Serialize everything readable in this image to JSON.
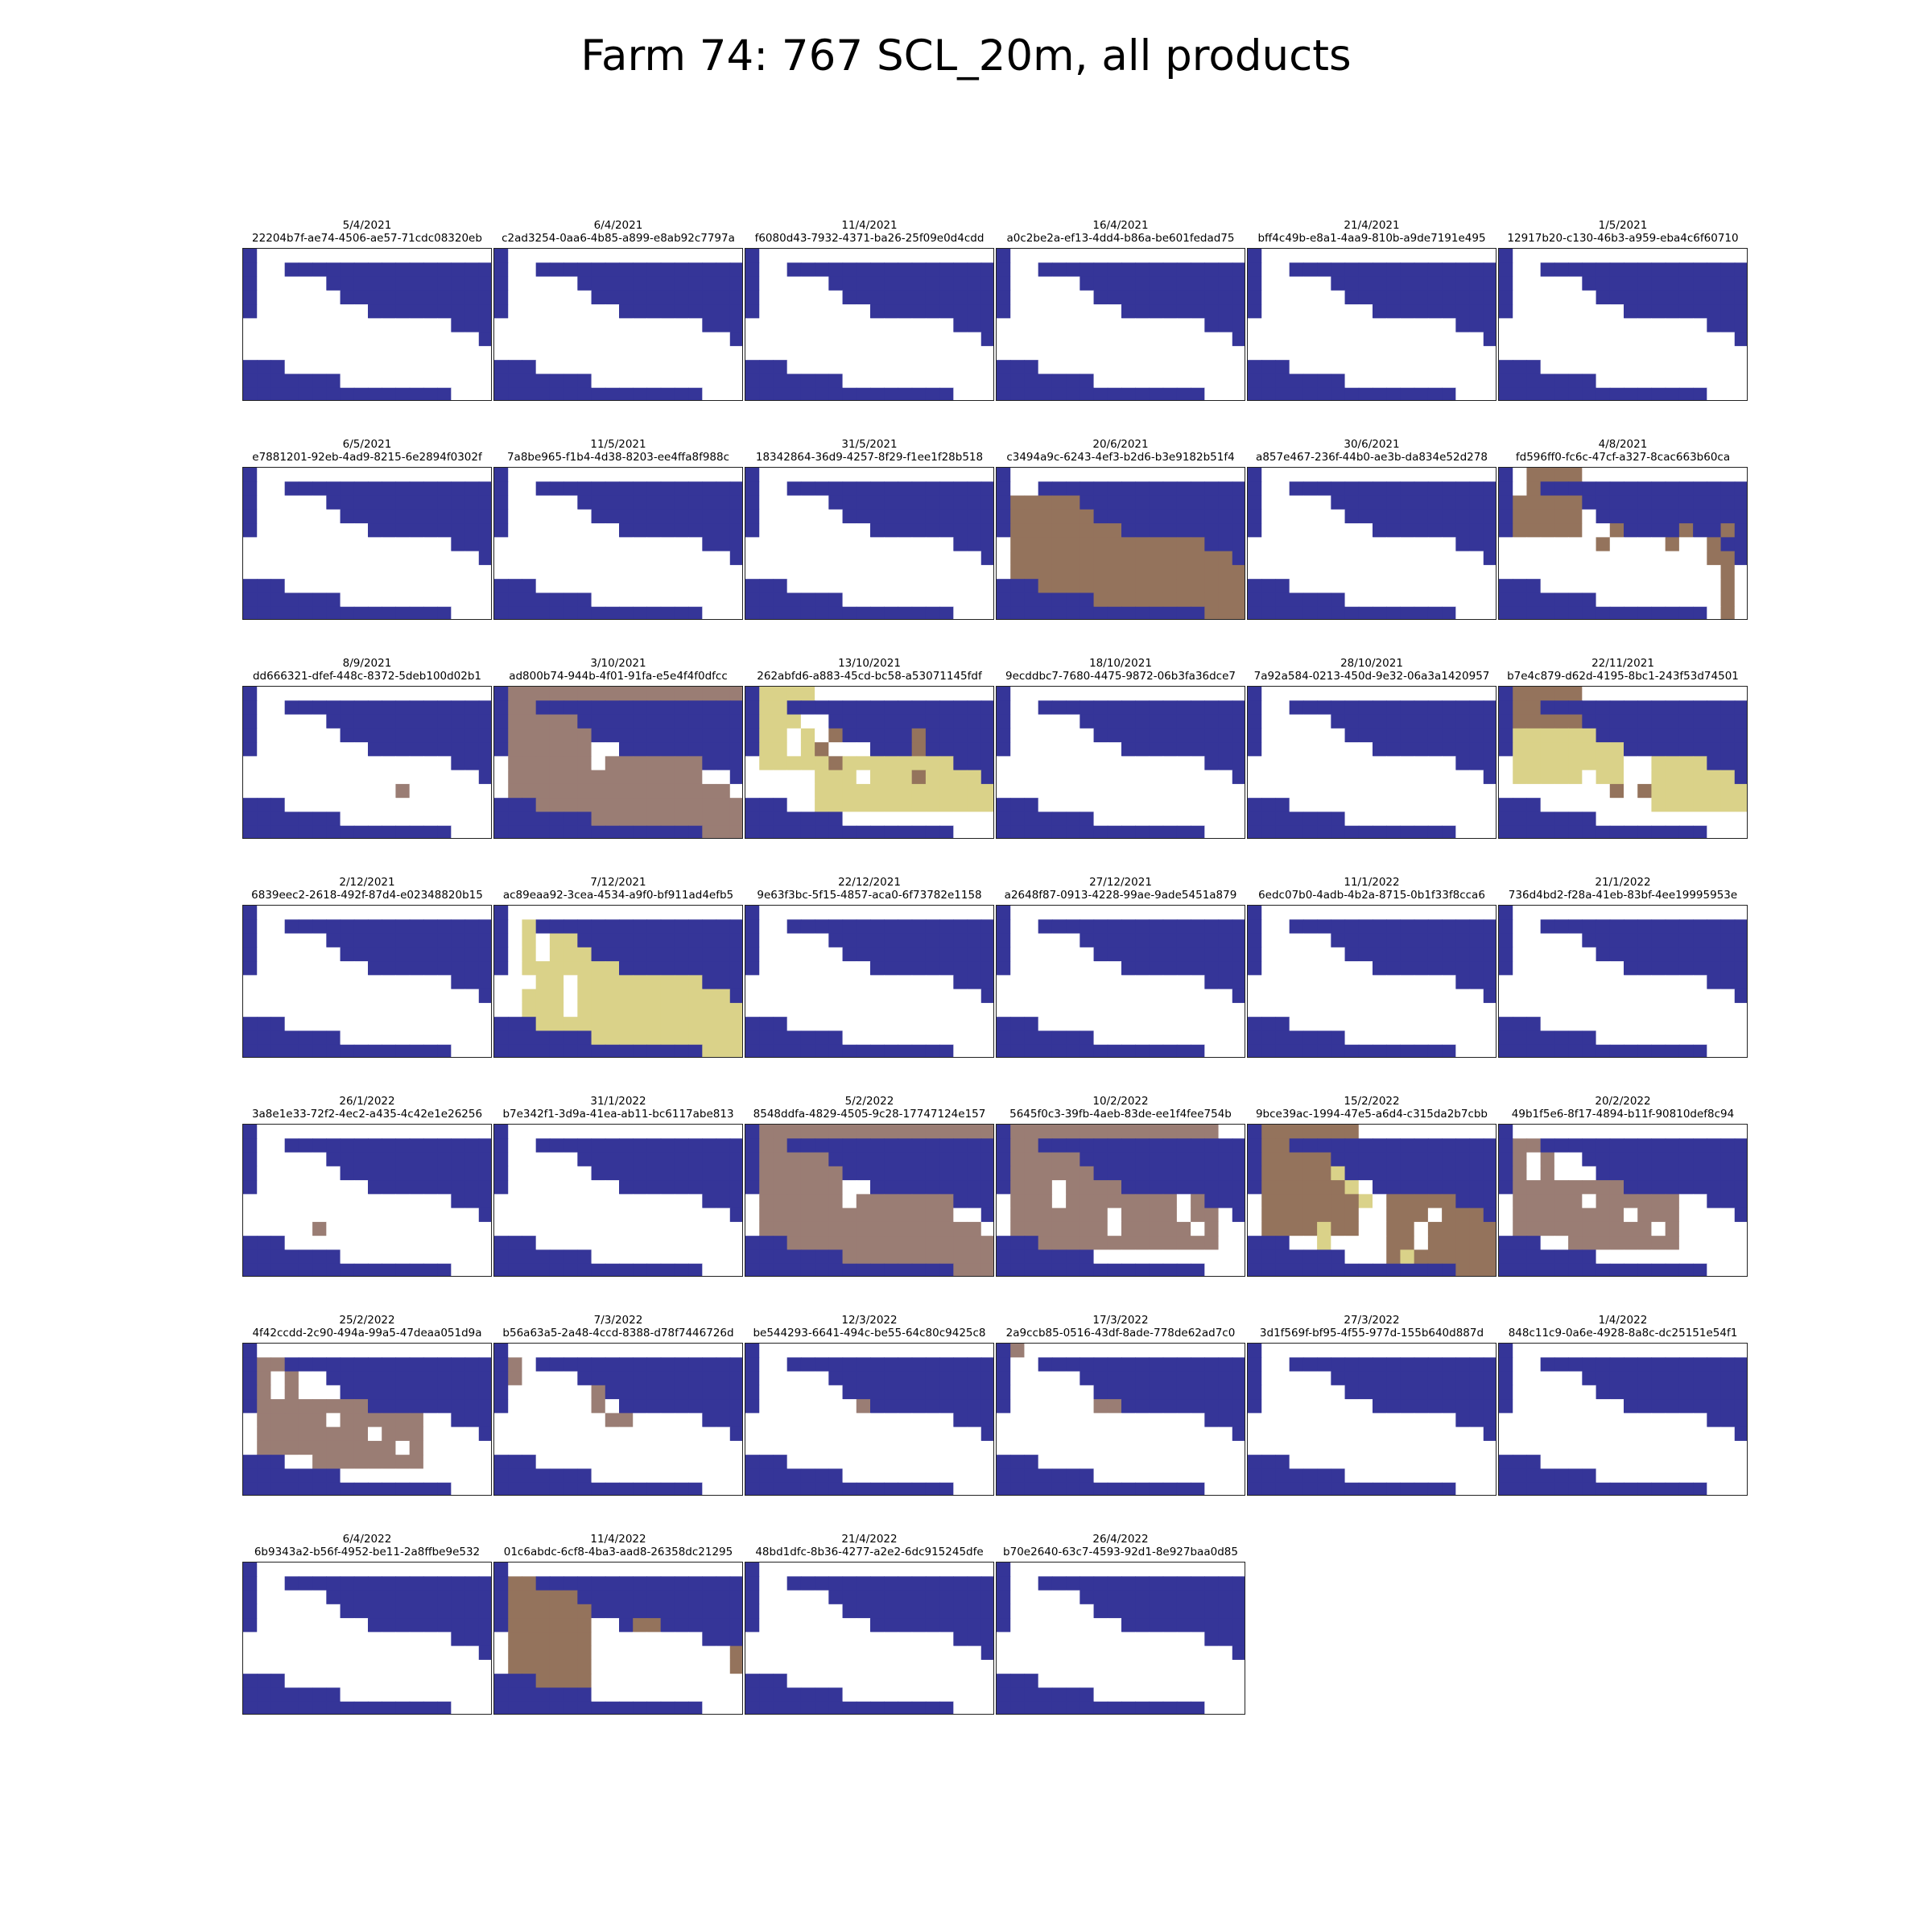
{
  "title": "Farm 74: 767 SCL_20m, all products",
  "colors": {
    "no_data": "#353598",
    "vegetation": "#ffffff",
    "dark_area": "#94735c",
    "cloud_shadow": "#9a7d74",
    "cloud": "#dad289"
  },
  "panels": [
    {
      "date": "5/4/2021",
      "id": "22204b7f-ae74-4506-ae57-71cdc08320eb",
      "variant": "base"
    },
    {
      "date": "6/4/2021",
      "id": "c2ad3254-0aa6-4b85-a899-e8ab92c7797a",
      "variant": "base"
    },
    {
      "date": "11/4/2021",
      "id": "f6080d43-7932-4371-ba26-25f09e0d4cdd",
      "variant": "base"
    },
    {
      "date": "16/4/2021",
      "id": "a0c2be2a-ef13-4dd4-b86a-be601fedad75",
      "variant": "base"
    },
    {
      "date": "21/4/2021",
      "id": "bff4c49b-e8a1-4aa9-810b-a9de7191e495",
      "variant": "base"
    },
    {
      "date": "1/5/2021",
      "id": "12917b20-c130-46b3-a959-eba4c6f60710",
      "variant": "base"
    },
    {
      "date": "6/5/2021",
      "id": "e7881201-92eb-4ad9-8215-6e2894f0302f",
      "variant": "base"
    },
    {
      "date": "11/5/2021",
      "id": "7a8be965-f1b4-4d38-8203-ee4ffa8f988c",
      "variant": "base"
    },
    {
      "date": "31/5/2021",
      "id": "18342864-36d9-4257-8f29-f1ee1f28b518",
      "variant": "base"
    },
    {
      "date": "20/6/2021",
      "id": "c3494a9c-6243-4ef3-b2d6-b3e9182b51f4",
      "variant": "dark_full"
    },
    {
      "date": "30/6/2021",
      "id": "a857e467-236f-44b0-ae3b-da834e52d278",
      "variant": "base"
    },
    {
      "date": "4/8/2021",
      "id": "fd596ff0-fc6c-47cf-a327-8cac663b60ca",
      "variant": "dark_partial"
    },
    {
      "date": "8/9/2021",
      "id": "dd666321-dfef-448c-8372-5deb100d02b1",
      "variant": "speck"
    },
    {
      "date": "3/10/2021",
      "id": "ad800b74-944b-4f01-91fa-e5e4f4f0dfcc",
      "variant": "shadow_full"
    },
    {
      "date": "13/10/2021",
      "id": "262abfd6-a883-45cd-bc58-a53071145fdf",
      "variant": "cloud_mixed"
    },
    {
      "date": "18/10/2021",
      "id": "9ecddbc7-7680-4475-9872-06b3fa36dce7",
      "variant": "base"
    },
    {
      "date": "28/10/2021",
      "id": "7a92a584-0213-450d-9e32-06a3a1420957",
      "variant": "base"
    },
    {
      "date": "22/11/2021",
      "id": "b7e4c879-d62d-4195-8bc1-243f53d74501",
      "variant": "cloud_partial"
    },
    {
      "date": "2/12/2021",
      "id": "6839eec2-2618-492f-87d4-e02348820b15",
      "variant": "base"
    },
    {
      "date": "7/12/2021",
      "id": "ac89eaa92-3cea-4534-a9f0-bf911ad4efb5",
      "variant": "cloud_full"
    },
    {
      "date": "22/12/2021",
      "id": "9e63f3bc-5f15-4857-aca0-6f73782e1158",
      "variant": "base"
    },
    {
      "date": "27/12/2021",
      "id": "a2648f87-0913-4228-99ae-9ade5451a879",
      "variant": "base"
    },
    {
      "date": "11/1/2022",
      "id": "6edc07b0-4adb-4b2a-8715-0b1f33f8cca6",
      "variant": "base"
    },
    {
      "date": "21/1/2022",
      "id": "736d4bd2-f28a-41eb-83bf-4ee19995953e",
      "variant": "base"
    },
    {
      "date": "26/1/2022",
      "id": "3a8e1e33-72f2-4ec2-a435-4c42e1e26256",
      "variant": "speck2"
    },
    {
      "date": "31/1/2022",
      "id": "b7e342f1-3d9a-41ea-ab11-bc6117abe813",
      "variant": "base"
    },
    {
      "date": "5/2/2022",
      "id": "8548ddfa-4829-4505-9c28-17747124e157",
      "variant": "shadow_full"
    },
    {
      "date": "10/2/2022",
      "id": "5645f0c3-39fb-4aeb-83de-ee1f4fee754b",
      "variant": "shadow_holes"
    },
    {
      "date": "15/2/2022",
      "id": "9bce39ac-1994-47e5-a6d4-c315da2b7cbb",
      "variant": "dark_cloud"
    },
    {
      "date": "20/2/2022",
      "id": "49b1f5e6-8f17-4894-b11f-90810def8c94",
      "variant": "shadow_partial"
    },
    {
      "date": "25/2/2022",
      "id": "4f42ccdd-2c90-494a-99a5-47deaa051d9a",
      "variant": "shadow_partial"
    },
    {
      "date": "7/3/2022",
      "id": "b56a63a5-2a48-4ccd-8388-d78f7446726d",
      "variant": "shadow_small"
    },
    {
      "date": "12/3/2022",
      "id": "be544293-6641-494c-be55-64c80c9425c8",
      "variant": "speck3"
    },
    {
      "date": "17/3/2022",
      "id": "2a9ccb85-0516-43df-8ade-778de62ad7c0",
      "variant": "speck4"
    },
    {
      "date": "27/3/2022",
      "id": "3d1f569f-bf95-4f55-977d-155b640d887d",
      "variant": "base"
    },
    {
      "date": "1/4/2022",
      "id": "848c11c9-0a6e-4928-8a8c-dc25151e54f1",
      "variant": "base"
    },
    {
      "date": "6/4/2022",
      "id": "6b9343a2-b56f-4952-be11-2a8ffbe9e532",
      "variant": "base"
    },
    {
      "date": "11/4/2022",
      "id": "01c6abdc-6cf8-4ba3-aad8-26358dc21295",
      "variant": "dark_left"
    },
    {
      "date": "21/4/2022",
      "id": "48bd1dfc-8b36-4277-a2e2-6dc915245dfe",
      "variant": "base"
    },
    {
      "date": "26/4/2022",
      "id": "b70e2640-63c7-4593-92d1-8e927baa0d85",
      "variant": "base"
    }
  ]
}
